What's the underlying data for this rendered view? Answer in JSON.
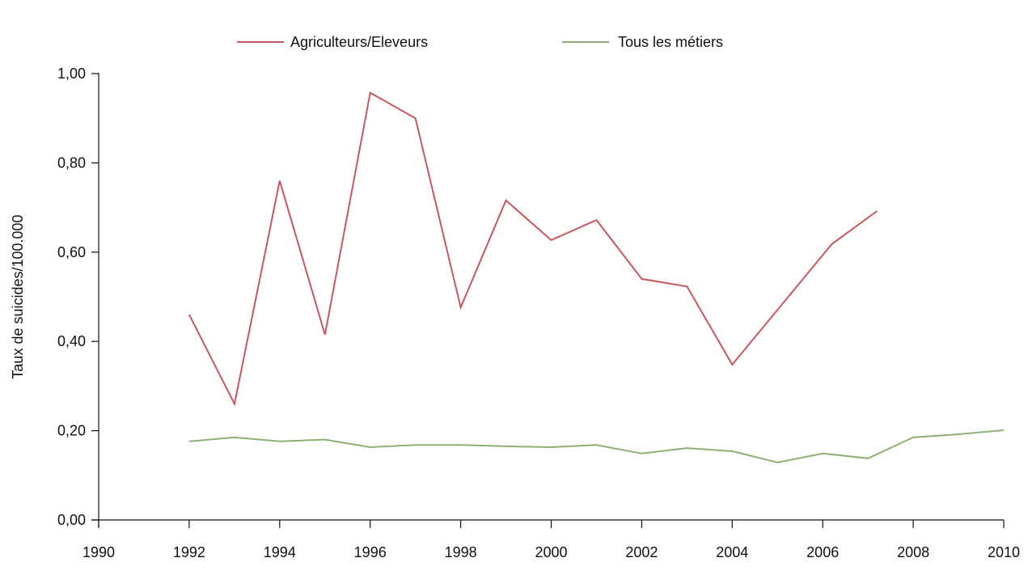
{
  "chart_data": {
    "type": "line",
    "title": "",
    "xlabel": "",
    "ylabel": "Taux de suicides/100.000",
    "xlim": [
      1990,
      2010
    ],
    "ylim": [
      0,
      1
    ],
    "x_ticks": [
      "1990",
      "1992",
      "1994",
      "1996",
      "1998",
      "2000",
      "2002",
      "2004",
      "2006",
      "2008",
      "2010"
    ],
    "y_ticks": [
      "0,00",
      "0,20",
      "0,40",
      "0,60",
      "0,80",
      "1,00"
    ],
    "grid": false,
    "legend_position": "top",
    "series": [
      {
        "name": "Agriculteurs/Eleveurs",
        "color": "#c9575f",
        "x": [
          1992,
          1993,
          1994,
          1995,
          1996,
          1997,
          1998,
          1999,
          2000,
          2001,
          2002,
          2003,
          2004,
          2006.2,
          2007.2
        ],
        "values": [
          0.46,
          0.26,
          0.76,
          0.415,
          0.957,
          0.9,
          0.476,
          0.716,
          0.627,
          0.672,
          0.54,
          0.523,
          0.348,
          0.618,
          0.692
        ]
      },
      {
        "name": "Tous les métiers",
        "color": "#8fb075",
        "x": [
          1992,
          1993,
          1994,
          1995,
          1996,
          1997,
          1998,
          1999,
          2000,
          2001,
          2002,
          2003,
          2004,
          2005,
          2006,
          2007,
          2008,
          2009,
          2010
        ],
        "values": [
          0.176,
          0.185,
          0.176,
          0.18,
          0.163,
          0.168,
          0.168,
          0.165,
          0.163,
          0.168,
          0.149,
          0.161,
          0.154,
          0.129,
          0.149,
          0.138,
          0.185,
          0.192,
          0.201
        ]
      }
    ]
  },
  "legend": {
    "items": [
      {
        "label": "Agriculteurs/Eleveurs",
        "color": "#c9575f"
      },
      {
        "label": "Tous les métiers",
        "color": "#8fb075"
      }
    ]
  },
  "axes": {
    "y_title": "Taux de suicides/100.000"
  }
}
